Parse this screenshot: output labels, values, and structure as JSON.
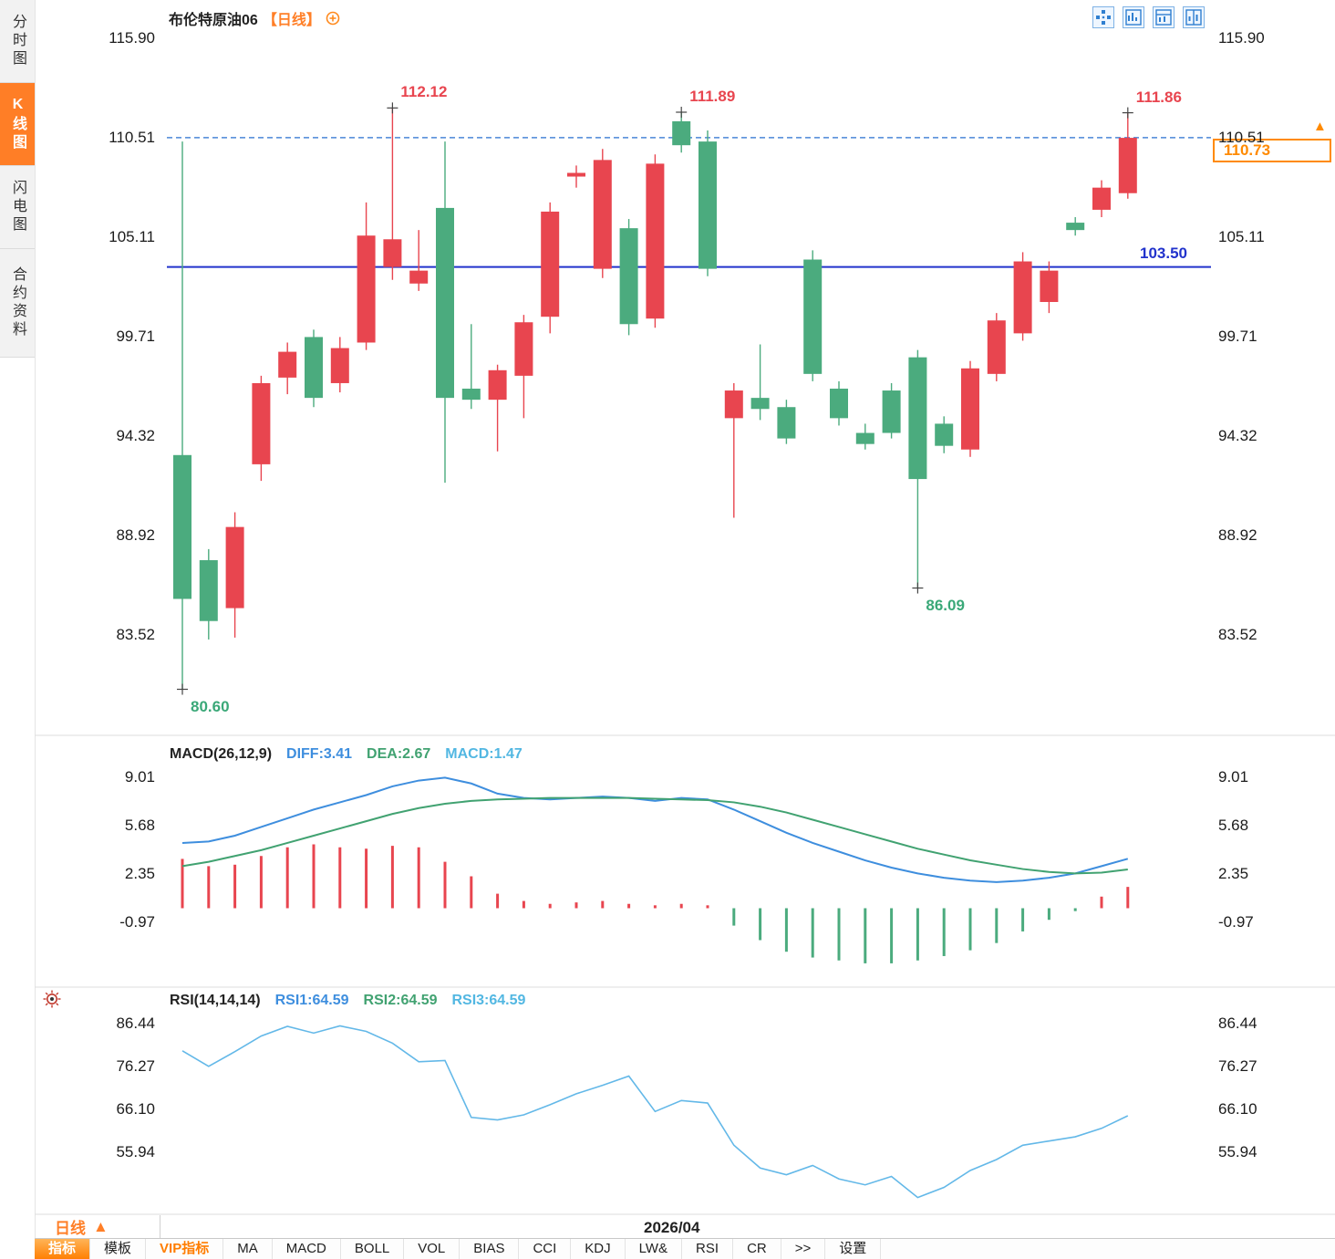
{
  "sidebar": {
    "tabs": [
      {
        "id": "time-chart",
        "label": "分时图",
        "active": false
      },
      {
        "id": "kline-chart",
        "label": "K线图",
        "active": true
      },
      {
        "id": "flash-chart",
        "label": "闪电图",
        "active": false
      },
      {
        "id": "contract-info",
        "label": "合约资料",
        "active": false
      }
    ]
  },
  "header": {
    "instrument": "布伦特原油06",
    "period": "【日线】",
    "expand_icon": "circle-plus-icon",
    "icons": [
      "pane-grid-icon",
      "layout-left-icon",
      "layout-right-icon",
      "layout-split-icon"
    ]
  },
  "side_icons": [
    "indicator-settings-icon"
  ],
  "chart_data": [
    {
      "type": "candlestick",
      "title": "布伦特原油06",
      "period": "日线",
      "y_ticks": [
        "115.90",
        "110.51",
        "105.11",
        "99.71",
        "94.32",
        "88.92",
        "83.52"
      ],
      "ylim": [
        78.4,
        116.49
      ],
      "up_color": "#e8454f",
      "down_color": "#4bab7e",
      "candles": [
        [
          93.3,
          110.3,
          80.6,
          85.5
        ],
        [
          87.6,
          88.2,
          83.3,
          84.3
        ],
        [
          85.0,
          90.2,
          83.4,
          89.4
        ],
        [
          92.8,
          97.6,
          91.9,
          97.2
        ],
        [
          97.5,
          99.4,
          96.6,
          98.9
        ],
        [
          99.7,
          100.1,
          95.9,
          96.4
        ],
        [
          97.2,
          99.7,
          96.7,
          99.1
        ],
        [
          99.4,
          107.0,
          99.0,
          105.2
        ],
        [
          103.5,
          112.12,
          102.8,
          105.0
        ],
        [
          102.6,
          105.5,
          102.2,
          103.3
        ],
        [
          106.7,
          110.3,
          91.8,
          96.4
        ],
        [
          96.9,
          100.4,
          95.8,
          96.3
        ],
        [
          96.3,
          98.2,
          93.5,
          97.9
        ],
        [
          97.6,
          100.9,
          95.3,
          100.5
        ],
        [
          100.8,
          107.0,
          99.9,
          106.5
        ],
        [
          108.4,
          109.0,
          107.8,
          108.6
        ],
        [
          103.4,
          109.9,
          102.9,
          109.3
        ],
        [
          105.6,
          106.1,
          99.8,
          100.4
        ],
        [
          100.7,
          109.6,
          100.2,
          109.1
        ],
        [
          111.4,
          111.89,
          109.7,
          110.1
        ],
        [
          110.3,
          110.9,
          103.0,
          103.4
        ],
        [
          95.3,
          97.2,
          89.9,
          96.8
        ],
        [
          96.4,
          99.3,
          95.2,
          95.8
        ],
        [
          95.9,
          96.3,
          93.9,
          94.2
        ],
        [
          103.9,
          104.4,
          97.3,
          97.7
        ],
        [
          96.9,
          97.3,
          94.9,
          95.3
        ],
        [
          94.5,
          95.0,
          93.6,
          93.9
        ],
        [
          96.8,
          97.2,
          94.2,
          94.5
        ],
        [
          98.6,
          99.0,
          86.09,
          92.0
        ],
        [
          95.0,
          95.4,
          93.4,
          93.8
        ],
        [
          93.6,
          98.4,
          93.2,
          98.0
        ],
        [
          97.7,
          101.0,
          97.3,
          100.6
        ],
        [
          99.9,
          104.3,
          99.5,
          103.8
        ],
        [
          101.6,
          103.8,
          101.0,
          103.3
        ],
        [
          105.9,
          106.2,
          105.2,
          105.5
        ],
        [
          106.6,
          108.2,
          106.2,
          107.8
        ],
        [
          107.5,
          111.86,
          107.2,
          110.5
        ]
      ],
      "annotations": [
        {
          "index": 8,
          "at": "high",
          "text": "112.12"
        },
        {
          "index": 19,
          "at": "high",
          "text": "111.89"
        },
        {
          "index": 36,
          "at": "high",
          "text": "111.86"
        },
        {
          "index": 28,
          "at": "low",
          "text": "86.09"
        },
        {
          "index": 0,
          "at": "low",
          "text": "80.60"
        }
      ],
      "annotation_colors": {
        "high": "#e8454f",
        "low": "#3aa878"
      },
      "hlines": [
        {
          "value": 103.5,
          "label": "103.50",
          "style": "solid",
          "color": "#2233cc"
        },
        {
          "value": 110.51,
          "label": "",
          "style": "dashed",
          "color": "#4a86d8"
        }
      ],
      "last_price": {
        "text": "110.73",
        "value": 110.73,
        "color": "#ff8a00",
        "arrow": "▲"
      }
    },
    {
      "type": "macd",
      "name": "MACD(26,12,9)",
      "legend": [
        {
          "text": "DIFF:3.41",
          "color": "#3e8ede"
        },
        {
          "text": "DEA:2.67",
          "color": "#41a271"
        },
        {
          "text": "MACD:1.47",
          "color": "#52b7e2"
        }
      ],
      "y_ticks": [
        "9.01",
        "5.68",
        "2.35",
        "-0.97"
      ],
      "tick_values": [
        9.01,
        5.68,
        2.35,
        -0.97
      ],
      "ylim": [
        -5.0,
        9.78
      ],
      "diff_color": "#3e8ede",
      "dea_color": "#41a271",
      "hist_up": "#e8454f",
      "hist_down": "#4bab7e",
      "diff": [
        4.5,
        4.6,
        5.0,
        5.6,
        6.2,
        6.8,
        7.3,
        7.8,
        8.4,
        8.8,
        9.0,
        8.6,
        7.9,
        7.6,
        7.5,
        7.6,
        7.7,
        7.6,
        7.4,
        7.6,
        7.5,
        6.8,
        6.0,
        5.2,
        4.5,
        3.9,
        3.3,
        2.8,
        2.4,
        2.1,
        1.9,
        1.8,
        1.9,
        2.1,
        2.4,
        2.9,
        3.41
      ],
      "dea": [
        2.9,
        3.2,
        3.6,
        4.0,
        4.5,
        5.0,
        5.5,
        6.0,
        6.5,
        6.9,
        7.2,
        7.4,
        7.5,
        7.55,
        7.6,
        7.6,
        7.6,
        7.6,
        7.55,
        7.5,
        7.45,
        7.3,
        7.0,
        6.6,
        6.1,
        5.6,
        5.1,
        4.6,
        4.1,
        3.7,
        3.3,
        3.0,
        2.7,
        2.5,
        2.4,
        2.45,
        2.67
      ],
      "hist": [
        3.4,
        2.9,
        3.0,
        3.6,
        4.2,
        4.4,
        4.2,
        4.1,
        4.3,
        4.2,
        3.2,
        2.2,
        1.0,
        0.5,
        0.3,
        0.4,
        0.5,
        0.3,
        0.2,
        0.3,
        0.2,
        -1.2,
        -2.2,
        -3.0,
        -3.4,
        -3.6,
        -3.8,
        -3.8,
        -3.6,
        -3.3,
        -2.9,
        -2.4,
        -1.6,
        -0.8,
        -0.2,
        0.8,
        1.47
      ]
    },
    {
      "type": "rsi",
      "name": "RSI(14,14,14)",
      "legend": [
        {
          "text": "RSI1:64.59",
          "color": "#3e8ede"
        },
        {
          "text": "RSI2:64.59",
          "color": "#41a271"
        },
        {
          "text": "RSI3:64.59",
          "color": "#52b7e2"
        }
      ],
      "y_ticks": [
        "86.44",
        "76.27",
        "66.10",
        "55.94"
      ],
      "tick_values": [
        86.44,
        76.27,
        66.1,
        55.94
      ],
      "ylim": [
        41.0,
        89.47
      ],
      "line_color": "#63b8e8",
      "values": [
        80.0,
        76.3,
        79.8,
        83.5,
        85.8,
        84.2,
        85.9,
        84.6,
        81.8,
        77.4,
        77.7,
        64.2,
        63.6,
        64.8,
        67.2,
        69.8,
        71.8,
        74.0,
        65.6,
        68.2,
        67.6,
        57.6,
        52.2,
        50.6,
        52.8,
        49.6,
        48.2,
        50.2,
        45.2,
        47.6,
        51.6,
        54.2,
        57.6,
        58.6,
        59.6,
        61.6,
        64.59
      ]
    }
  ],
  "bottom_bar": {
    "period_label": "日线",
    "period_arrow": "▲",
    "x_label": "2026/04"
  },
  "indicator_tabs": {
    "items": [
      {
        "id": "indicators",
        "label": "指标",
        "state": "active"
      },
      {
        "id": "templates",
        "label": "模板"
      },
      {
        "id": "vip-indicators",
        "label": "VIP指标",
        "state": "vip"
      },
      {
        "id": "ma",
        "label": "MA"
      },
      {
        "id": "macd",
        "label": "MACD"
      },
      {
        "id": "boll",
        "label": "BOLL"
      },
      {
        "id": "vol",
        "label": "VOL"
      },
      {
        "id": "bias",
        "label": "BIAS"
      },
      {
        "id": "cci",
        "label": "CCI"
      },
      {
        "id": "kdj",
        "label": "KDJ"
      },
      {
        "id": "lw",
        "label": "LW&"
      },
      {
        "id": "rsi",
        "label": "RSI"
      },
      {
        "id": "cr",
        "label": "CR"
      },
      {
        "id": "more",
        "label": ">>"
      },
      {
        "id": "settings",
        "label": "设置"
      }
    ]
  }
}
